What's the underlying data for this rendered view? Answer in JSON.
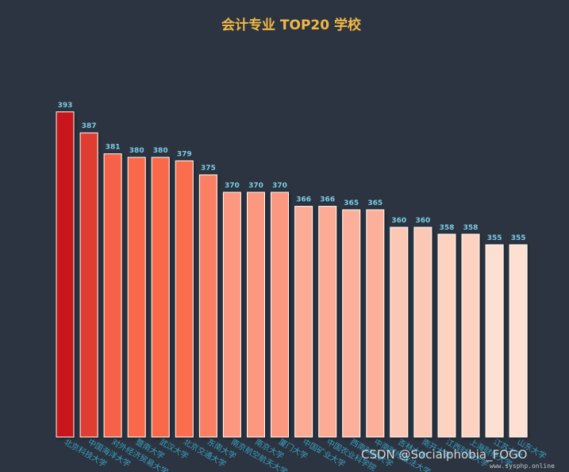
{
  "chart_data": {
    "type": "bar",
    "title": "会计专业 TOP20 学校",
    "categories": [
      "北京科技大学",
      "中国海洋大学",
      "对外经济贸易大学",
      "暨南大学",
      "武汉大学",
      "北京交通大学",
      "东南大学",
      "南京航空航天大学",
      "南京大学",
      "厦门大学",
      "中国矿业大学",
      "中国农业科学院",
      "西南财经大学",
      "中南财经政法大学",
      "吉林大学",
      "南开大学",
      "江西财经大学",
      "上海财经大学",
      "江苏大学",
      "山东大学"
    ],
    "values": [
      393,
      387,
      381,
      380,
      380,
      379,
      375,
      370,
      370,
      370,
      366,
      366,
      365,
      365,
      360,
      360,
      358,
      358,
      355,
      355
    ],
    "ylim": [
      300,
      400
    ],
    "grid": false,
    "xlabel": "",
    "ylabel": ""
  },
  "colors": {
    "background": "#2b3440",
    "title": "#f2b845",
    "value_label": "#7ecbe6",
    "category_label": "#3a9fc0",
    "bar_max": "#c8171c",
    "bar_mid": "#fa6a4a",
    "bar_min": "#fde0d2"
  },
  "watermark": {
    "main": "CSDN @Socialphobia_FOGO",
    "site": "www.sysphp.online"
  }
}
